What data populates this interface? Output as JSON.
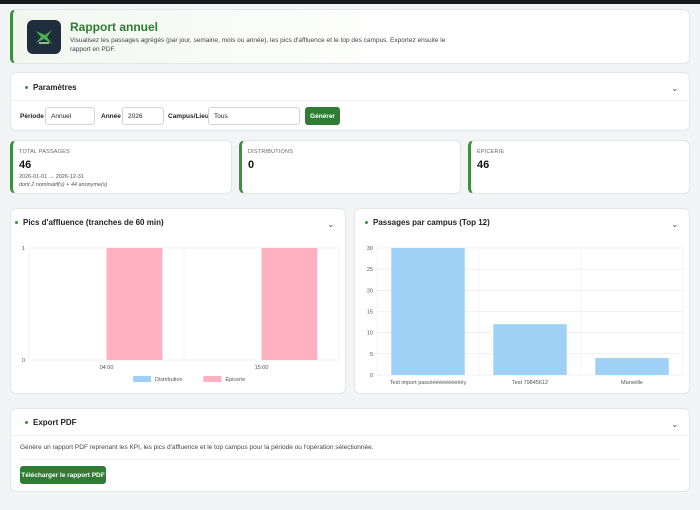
{
  "header": {
    "title": "Rapport annuel",
    "description": "Visualisez les passages agrégés (par jour, semaine, mois ou année), les pics d'affluence et le top des campus. Exportez ensuite le rapport en PDF."
  },
  "parametres": {
    "title": "Paramètres",
    "periode_label": "Période",
    "periode_value": "Annuel",
    "annee_label": "Année",
    "annee_value": "2026",
    "campus_label": "Campus/Lieu",
    "campus_value": "Tous",
    "generate_label": "Générer"
  },
  "kpis": [
    {
      "label": "TOTAL PASSAGES",
      "value": "46",
      "sub1": "2026-01-01 → 2026-12-31",
      "sub2": "dont 2 nominatif(s) + 44 anonyme(s)"
    },
    {
      "label": "DISTRIBUTIONS",
      "value": "0"
    },
    {
      "label": "ÉPICERIE",
      "value": "46"
    }
  ],
  "colors": {
    "accent": "#2e7d32",
    "distribution": "#9fd0f5",
    "epicerie": "#ffb1c1"
  },
  "chart_data": [
    {
      "type": "bar",
      "title": "Pics d'affluence (tranches de 60 min)",
      "categories": [
        "04:00",
        "15:00"
      ],
      "series": [
        {
          "name": "Distribution",
          "values": [
            0,
            0
          ]
        },
        {
          "name": "Épicerie",
          "values": [
            1,
            1
          ]
        }
      ],
      "ylim": [
        0,
        1
      ],
      "yticks": [
        "0",
        "1"
      ],
      "legend": "bottom"
    },
    {
      "type": "bar",
      "title": "Passages par campus (Top 12)",
      "categories": [
        "Test import passéééééééééééy",
        "Test 79845612",
        "Marseille"
      ],
      "values": [
        30,
        12,
        4
      ],
      "ylim": [
        0,
        30
      ],
      "yticks": [
        "0",
        "5",
        "10",
        "15",
        "20",
        "25",
        "30"
      ]
    }
  ],
  "export": {
    "title": "Export PDF",
    "description": "Génère un rapport PDF reprenant les KPI, les pics d'affluence et le top campus pour la période ou l'opération sélectionnée.",
    "button_label": "Télécharger le rapport PDF"
  }
}
